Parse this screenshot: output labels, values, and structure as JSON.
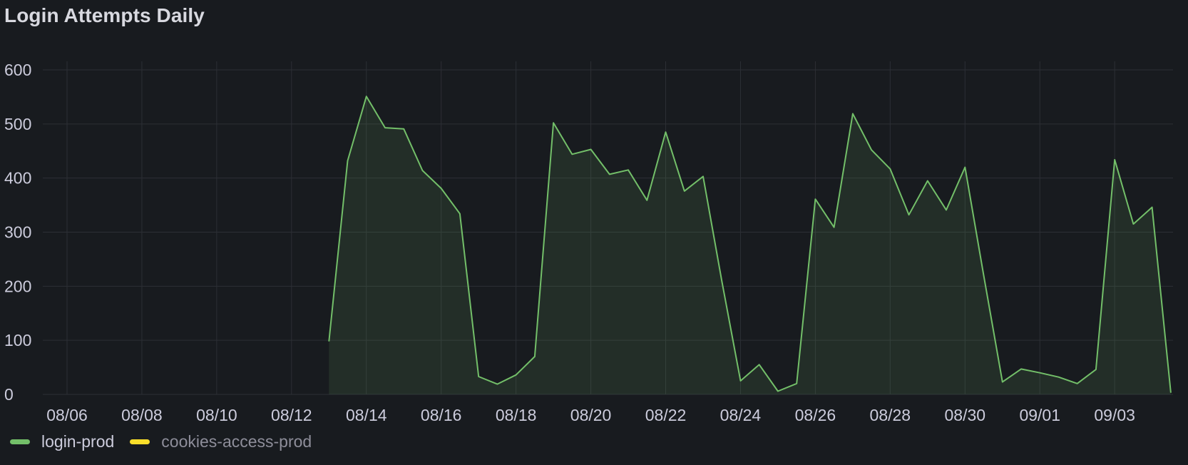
{
  "panel": {
    "title": "Login Attempts Daily"
  },
  "legend": {
    "items": [
      {
        "label": "login-prod",
        "color": "#73bf69",
        "active": true
      },
      {
        "label": "cookies-access-prod",
        "color": "#fade2a",
        "active": false
      }
    ]
  },
  "colors": {
    "background": "#181b1f",
    "grid": "#2c2f35",
    "text": "#ccccdc",
    "line": "#73bf69",
    "fill": "#73bf69"
  },
  "chart_data": {
    "type": "area",
    "title": "Login Attempts Daily",
    "xlabel": "",
    "ylabel": "",
    "ylim": [
      0,
      600
    ],
    "yticks": [
      0,
      100,
      200,
      300,
      400,
      500,
      600
    ],
    "xlim": [
      "08/05",
      "09/05"
    ],
    "xticks": [
      "08/06",
      "08/08",
      "08/10",
      "08/12",
      "08/14",
      "08/16",
      "08/18",
      "08/20",
      "08/22",
      "08/24",
      "08/26",
      "08/28",
      "08/30",
      "09/01",
      "09/03"
    ],
    "grid": true,
    "legend_position": "bottom-left",
    "series": [
      {
        "name": "login-prod",
        "color": "#73bf69",
        "x": [
          "08/13",
          "08/13 12:00",
          "08/14",
          "08/14 12:00",
          "08/15",
          "08/15 12:00",
          "08/16",
          "08/16 12:00",
          "08/17",
          "08/17 12:00",
          "08/18",
          "08/18 12:00",
          "08/19",
          "08/19 12:00",
          "08/20",
          "08/20 12:00",
          "08/21",
          "08/21 12:00",
          "08/22",
          "08/22 12:00",
          "08/23",
          "08/23 12:00",
          "08/24",
          "08/24 12:00",
          "08/25",
          "08/25 12:00",
          "08/26",
          "08/26 12:00",
          "08/27",
          "08/27 12:00",
          "08/28",
          "08/28 12:00",
          "08/29",
          "08/29 12:00",
          "08/30",
          "08/30 12:00",
          "08/31",
          "08/31 12:00",
          "09/01",
          "09/01 12:00",
          "09/02",
          "09/02 12:00",
          "09/03",
          "09/03 12:00",
          "09/04",
          "09/04 12:00"
        ],
        "values": [
          98,
          432,
          551,
          493,
          491,
          414,
          381,
          334,
          33,
          19,
          36,
          70,
          502,
          444,
          453,
          407,
          415,
          359,
          485,
          376,
          403,
          210,
          25,
          55,
          6,
          20,
          361,
          309,
          519,
          452,
          417,
          332,
          395,
          341,
          420,
          220,
          23,
          47,
          40,
          32,
          20,
          46,
          434,
          315,
          346,
          3
        ]
      },
      {
        "name": "cookies-access-prod",
        "color": "#fade2a",
        "hidden": true,
        "x": [],
        "values": []
      }
    ]
  }
}
